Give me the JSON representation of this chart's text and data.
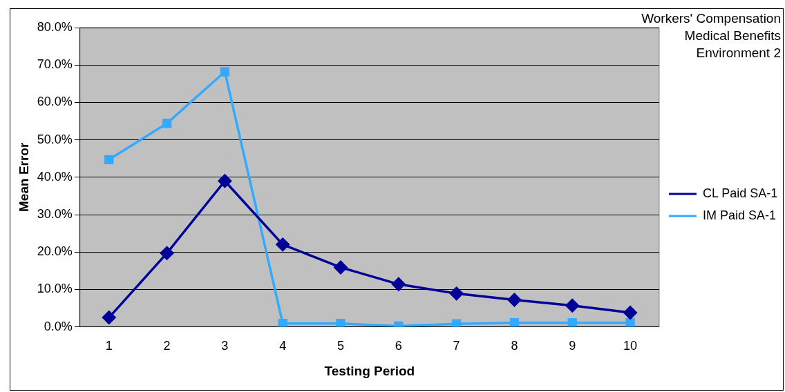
{
  "chart_data": {
    "type": "line",
    "title": "Workers' Compensation\nMedical Benefits\nEnvironment 2",
    "xlabel": "Testing Period",
    "ylabel": "Mean Error",
    "categories": [
      "1",
      "2",
      "3",
      "4",
      "5",
      "6",
      "7",
      "8",
      "9",
      "10"
    ],
    "series": [
      {
        "name": "CL Paid SA-1",
        "color": "#000099",
        "marker": "diamond",
        "values": [
          2.5,
          19.7,
          39.0,
          22.0,
          15.9,
          11.4,
          8.9,
          7.2,
          5.7,
          3.8
        ]
      },
      {
        "name": "IM Paid SA-1",
        "color": "#33aaff",
        "marker": "square",
        "values": [
          44.7,
          54.4,
          68.2,
          0.9,
          0.9,
          0.2,
          0.8,
          1.1,
          1.1,
          1.1
        ]
      }
    ],
    "ylim": [
      0,
      80
    ],
    "yticks": [
      {
        "value": 0,
        "label": "0.0%"
      },
      {
        "value": 10,
        "label": "10.0%"
      },
      {
        "value": 20,
        "label": "20.0%"
      },
      {
        "value": 30,
        "label": "30.0%"
      },
      {
        "value": 40,
        "label": "40.0%"
      },
      {
        "value": 50,
        "label": "50.0%"
      },
      {
        "value": 60,
        "label": "60.0%"
      },
      {
        "value": 70,
        "label": "70.0%"
      },
      {
        "value": 80,
        "label": "80.0%"
      }
    ],
    "grid": "y",
    "legend": "right",
    "line_style": "solid"
  }
}
